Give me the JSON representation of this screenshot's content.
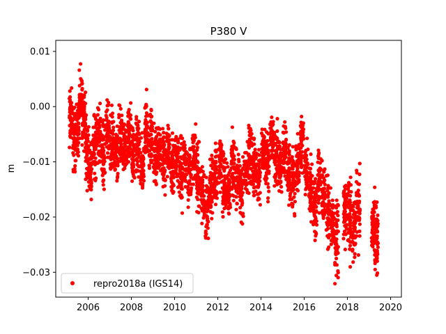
{
  "chart_data": {
    "type": "scatter",
    "title": "P380 V",
    "xlabel": "",
    "ylabel": "m",
    "xlim": [
      2004.5,
      2020.5
    ],
    "ylim": [
      -0.0345,
      0.012
    ],
    "x_ticks": [
      2006,
      2008,
      2010,
      2012,
      2014,
      2016,
      2018,
      2020
    ],
    "y_ticks": [
      0.01,
      0.0,
      -0.01,
      -0.02,
      -0.03
    ],
    "x_tick_labels": [
      "2006",
      "2008",
      "2010",
      "2012",
      "2014",
      "2016",
      "2018",
      "2020"
    ],
    "y_tick_labels": [
      "0.01",
      "0.00",
      "−0.01",
      "−0.02",
      "−0.03"
    ],
    "grid": false,
    "legend_position": "lower-left",
    "series": [
      {
        "name": "repro2018a (IGS14)",
        "color": "#ff0000",
        "marker": "circle",
        "x": [
          2005.2,
          2005.35,
          2005.5,
          2005.65,
          2005.8,
          2005.95,
          2006.1,
          2006.3,
          2006.5,
          2006.7,
          2006.9,
          2007.1,
          2007.3,
          2007.5,
          2007.7,
          2007.9,
          2008.1,
          2008.3,
          2008.5,
          2008.7,
          2008.9,
          2009.1,
          2009.3,
          2009.5,
          2009.7,
          2009.9,
          2010.1,
          2010.3,
          2010.5,
          2010.7,
          2010.9,
          2011.1,
          2011.3,
          2011.5,
          2011.7,
          2011.9,
          2012.1,
          2012.3,
          2012.5,
          2012.7,
          2012.9,
          2013.1,
          2013.3,
          2013.5,
          2013.7,
          2013.9,
          2014.1,
          2014.3,
          2014.5,
          2014.7,
          2014.9,
          2015.1,
          2015.3,
          2015.5,
          2015.7,
          2015.9,
          2016.1,
          2016.3,
          2016.5,
          2016.7,
          2016.9,
          2017.1,
          2017.3,
          2017.5,
          2017.9,
          2018.1,
          2018.3,
          2018.5,
          2019.2,
          2019.35
        ],
        "y": [
          -0.002,
          -0.006,
          -0.004,
          0.001,
          -0.002,
          -0.008,
          -0.011,
          -0.007,
          -0.005,
          -0.009,
          -0.004,
          -0.007,
          -0.009,
          -0.006,
          -0.008,
          -0.005,
          -0.009,
          -0.007,
          -0.011,
          -0.004,
          -0.006,
          -0.009,
          -0.007,
          -0.01,
          -0.008,
          -0.011,
          -0.009,
          -0.012,
          -0.01,
          -0.012,
          -0.009,
          -0.013,
          -0.016,
          -0.019,
          -0.014,
          -0.012,
          -0.01,
          -0.014,
          -0.016,
          -0.011,
          -0.013,
          -0.016,
          -0.012,
          -0.009,
          -0.011,
          -0.013,
          -0.008,
          -0.01,
          -0.006,
          -0.009,
          -0.011,
          -0.008,
          -0.012,
          -0.014,
          -0.011,
          -0.006,
          -0.012,
          -0.015,
          -0.018,
          -0.013,
          -0.016,
          -0.019,
          -0.021,
          -0.024,
          -0.019,
          -0.02,
          -0.022,
          -0.018,
          -0.022,
          -0.024
        ],
        "spread": [
          0.003,
          0.0035,
          0.003,
          0.0035,
          0.003,
          0.0035,
          0.003,
          0.0035,
          0.003,
          0.0035,
          0.003,
          0.0035,
          0.003,
          0.0035,
          0.003,
          0.0035,
          0.003,
          0.0035,
          0.003,
          0.0035,
          0.003,
          0.0035,
          0.003,
          0.0035,
          0.003,
          0.0035,
          0.003,
          0.0035,
          0.003,
          0.0035,
          0.003,
          0.0035,
          0.003,
          0.0035,
          0.003,
          0.0035,
          0.003,
          0.0035,
          0.003,
          0.0035,
          0.003,
          0.0035,
          0.003,
          0.0035,
          0.003,
          0.0035,
          0.003,
          0.0035,
          0.003,
          0.0035,
          0.003,
          0.0035,
          0.003,
          0.0035,
          0.003,
          0.0035,
          0.003,
          0.0035,
          0.003,
          0.0035,
          0.003,
          0.0035,
          0.003,
          0.004,
          0.0035,
          0.004,
          0.0035,
          0.004,
          0.0035,
          0.004
        ]
      }
    ]
  }
}
